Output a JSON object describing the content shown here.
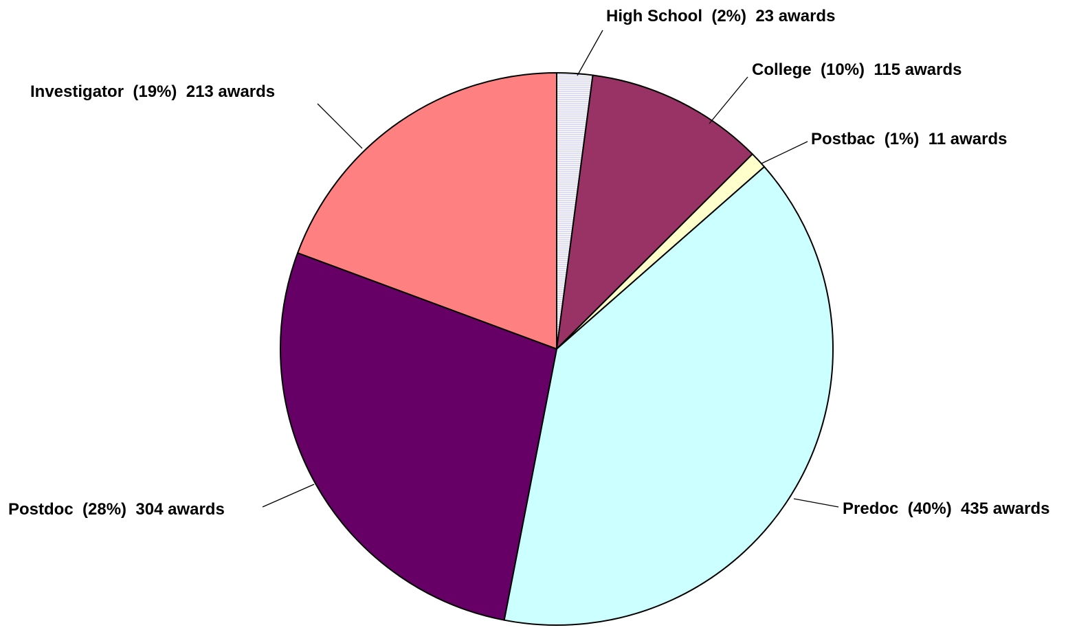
{
  "chart_data": {
    "type": "pie",
    "title": "",
    "unit": "awards",
    "slices": [
      {
        "name": "High School",
        "percent_label": "(2%)",
        "value": 23,
        "label": "High School  (2%)  23 awards",
        "color": "#e8e8ff",
        "pattern": "horizontal-lines"
      },
      {
        "name": "College",
        "percent_label": "(10%)",
        "value": 115,
        "label": "College  (10%)  115 awards",
        "color": "#993366"
      },
      {
        "name": "Postbac",
        "percent_label": "(1%)",
        "value": 11,
        "label": "Postbac  (1%)  11 awards",
        "color": "#ffffcc"
      },
      {
        "name": "Predoc",
        "percent_label": "(40%)",
        "value": 435,
        "label": "Predoc  (40%)  435 awards",
        "color": "#ccffff"
      },
      {
        "name": "Postdoc",
        "percent_label": "(28%)",
        "value": 304,
        "label": "Postdoc  (28%)  304 awards",
        "color": "#660066"
      },
      {
        "name": "Investigator",
        "percent_label": "(19%)",
        "value": 213,
        "label": "Investigator  (19%)  213 awards",
        "color": "#ff8080"
      }
    ],
    "start_angle_deg": 0,
    "direction": "clockwise",
    "legend": "none"
  }
}
